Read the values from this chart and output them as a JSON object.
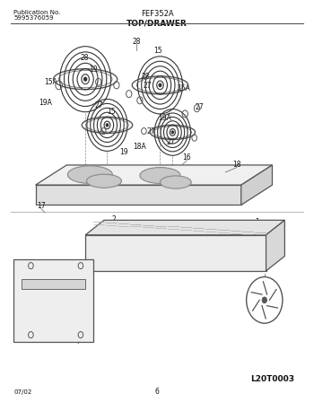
{
  "title": "FEF352A",
  "pub_no": "Publication No.",
  "pub_num": "5995376059",
  "section": "TOP/DRAWER",
  "diagram_code": "L20T0003",
  "date": "07/02",
  "page": "6",
  "bg_color": "#ffffff",
  "line_color": "#555555",
  "text_color": "#222222"
}
